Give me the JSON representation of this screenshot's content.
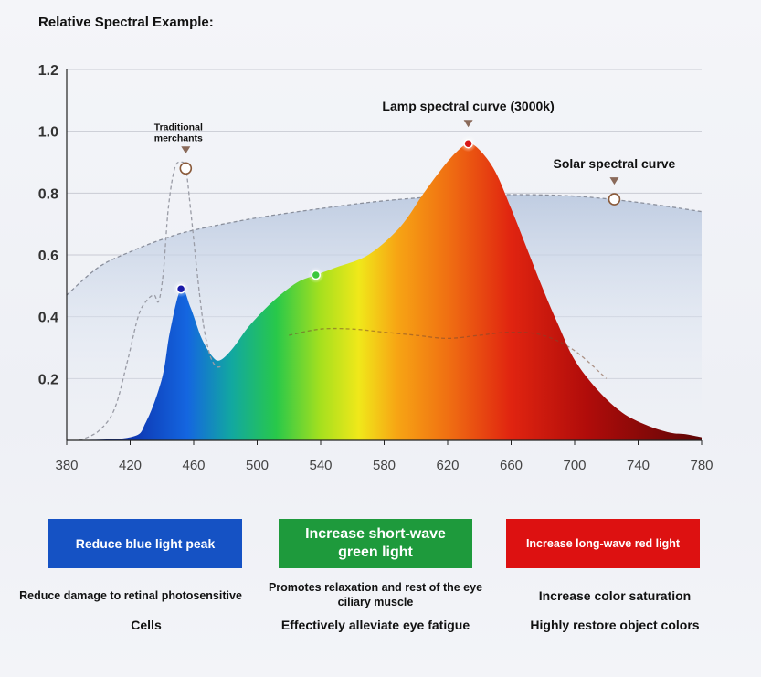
{
  "page_title": "Relative Spectral Example:",
  "chart_data": {
    "type": "area",
    "x_ticks": [
      380,
      420,
      460,
      500,
      540,
      580,
      620,
      660,
      700,
      740,
      780
    ],
    "y_ticks": [
      0.2,
      0.4,
      0.6,
      0.8,
      1.0,
      1.2
    ],
    "y_tick_labels": [
      "0.2",
      "0.4",
      "0.6",
      "0.8",
      "1.0",
      "1.2"
    ],
    "xlim": [
      380,
      780
    ],
    "ylim": [
      0,
      1.2
    ],
    "grid": true,
    "series": [
      {
        "name": "Lamp spectral curve (3000k)",
        "style": "spectrum-filled",
        "x": [
          380,
          420,
          430,
          440,
          445,
          452,
          458,
          465,
          472,
          477,
          485,
          495,
          510,
          525,
          537,
          550,
          570,
          590,
          605,
          615,
          625,
          633,
          640,
          650,
          660,
          670,
          680,
          690,
          700,
          715,
          730,
          745,
          760,
          770,
          780
        ],
        "y": [
          0.0,
          0.01,
          0.06,
          0.2,
          0.35,
          0.49,
          0.43,
          0.33,
          0.27,
          0.26,
          0.3,
          0.37,
          0.45,
          0.51,
          0.535,
          0.56,
          0.6,
          0.69,
          0.8,
          0.87,
          0.93,
          0.96,
          0.94,
          0.87,
          0.75,
          0.62,
          0.49,
          0.37,
          0.26,
          0.16,
          0.09,
          0.05,
          0.025,
          0.02,
          0.01
        ]
      },
      {
        "name": "Solar spectral curve",
        "style": "dashed-filled",
        "x": [
          380,
          400,
          420,
          440,
          460,
          500,
          540,
          580,
          620,
          660,
          700,
          740,
          780
        ],
        "y": [
          0.47,
          0.56,
          0.61,
          0.65,
          0.68,
          0.72,
          0.75,
          0.775,
          0.79,
          0.795,
          0.79,
          0.77,
          0.74
        ]
      },
      {
        "name": "Traditional merchants",
        "style": "dashed",
        "x": [
          388,
          400,
          410,
          418,
          425,
          430,
          435,
          438,
          441,
          444,
          448,
          452,
          455,
          458,
          462,
          466,
          470,
          474,
          478
        ],
        "y": [
          0.0,
          0.03,
          0.1,
          0.25,
          0.4,
          0.45,
          0.47,
          0.45,
          0.55,
          0.75,
          0.88,
          0.9,
          0.88,
          0.75,
          0.55,
          0.38,
          0.28,
          0.24,
          0.24
        ]
      },
      {
        "name": "",
        "style": "dashed",
        "x": [
          520,
          540,
          560,
          580,
          600,
          620,
          640,
          660,
          680,
          700,
          720
        ],
        "y": [
          0.34,
          0.36,
          0.36,
          0.35,
          0.34,
          0.33,
          0.34,
          0.35,
          0.34,
          0.29,
          0.2
        ]
      }
    ],
    "markers": [
      {
        "x": 452,
        "y": 0.49,
        "color": "#1a1aa8"
      },
      {
        "x": 537,
        "y": 0.535,
        "color": "#3cc83c"
      },
      {
        "x": 633,
        "y": 0.96,
        "color": "#d81818"
      },
      {
        "x": 455,
        "y": 0.88,
        "color": "none"
      },
      {
        "x": 725,
        "y": 0.78,
        "color": "none"
      }
    ],
    "annotations": [
      {
        "text": "Lamp spectral curve (3000k)",
        "x": 633,
        "y": 0.96
      },
      {
        "text": "Solar spectral curve",
        "x": 725,
        "y": 0.78
      },
      {
        "text": "Traditional merchants",
        "lines": [
          "Traditional",
          "merchants"
        ],
        "x": 455,
        "y": 0.88
      }
    ]
  },
  "features": [
    {
      "label": "Reduce blue light peak",
      "color": "#1552c4",
      "desc_top": "Reduce damage to retinal photosensitive",
      "desc_bottom": "Cells"
    },
    {
      "label_lines": [
        "Increase short-wave",
        "green light"
      ],
      "color": "#1e9a3c",
      "desc_top_lines": [
        "Promotes relaxation and rest of the eye",
        "ciliary muscle"
      ],
      "desc_bottom": "Effectively alleviate eye fatigue"
    },
    {
      "label": "Increase long-wave red light",
      "color": "#dd1111",
      "desc_top": "Increase color saturation",
      "desc_bottom": "Highly restore object colors"
    }
  ]
}
